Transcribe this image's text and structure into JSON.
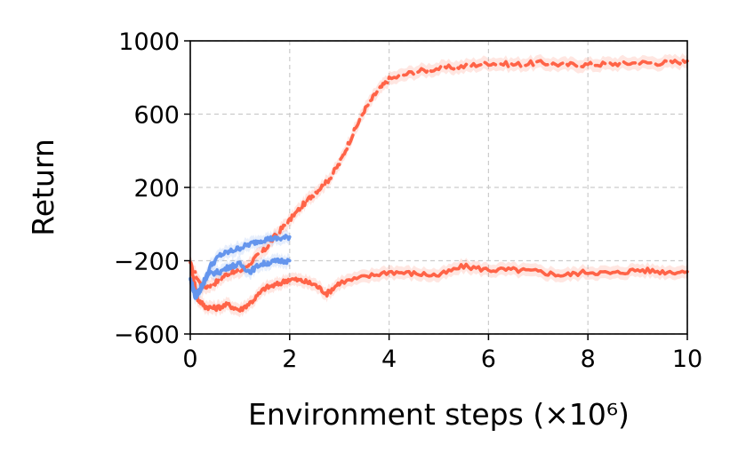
{
  "chart_data": {
    "type": "line",
    "title": "",
    "xlabel": "Environment steps (×10⁶)",
    "ylabel": "Return",
    "xlim": [
      0,
      10
    ],
    "ylim": [
      -600,
      1000
    ],
    "xticks": [
      0,
      2,
      4,
      6,
      8,
      10
    ],
    "xtick_labels": [
      "0",
      "2",
      "4",
      "6",
      "8",
      "10"
    ],
    "yticks": [
      -600,
      -200,
      200,
      600,
      1000
    ],
    "ytick_labels": [
      "−600",
      "−200",
      "200",
      "600",
      "1000"
    ],
    "grid": true,
    "legend": "none",
    "series": [
      {
        "color": "#ff6347",
        "style": "dashed",
        "shaded_band": true,
        "x": [
          0,
          0.25,
          0.5,
          0.75,
          1.0,
          1.25,
          1.5,
          1.75,
          2.0,
          2.25,
          2.5,
          2.75,
          3.0,
          3.25,
          3.5,
          3.75,
          4.0,
          4.5,
          5.0,
          5.5,
          6.0,
          6.5,
          7.0,
          7.5,
          8.0,
          8.5,
          9.0,
          9.5,
          10.0
        ],
        "y": [
          -220,
          -350,
          -320,
          -270,
          -260,
          -200,
          -140,
          -50,
          20,
          100,
          170,
          230,
          330,
          480,
          620,
          720,
          790,
          830,
          850,
          860,
          880,
          870,
          880,
          870,
          870,
          875,
          880,
          880,
          890
        ]
      },
      {
        "color": "#ff6347",
        "style": "solid",
        "shaded_band": true,
        "x": [
          0,
          0.15,
          0.3,
          0.5,
          0.75,
          1.0,
          1.25,
          1.5,
          1.75,
          2.0,
          2.25,
          2.5,
          2.75,
          3.0,
          3.5,
          4.0,
          4.5,
          5.0,
          5.5,
          6.0,
          6.5,
          7.0,
          7.5,
          8.0,
          8.5,
          9.0,
          9.5,
          10.0
        ],
        "y": [
          -200,
          -410,
          -450,
          -460,
          -440,
          -470,
          -420,
          -350,
          -330,
          -300,
          -310,
          -330,
          -380,
          -320,
          -290,
          -260,
          -270,
          -280,
          -230,
          -250,
          -250,
          -260,
          -280,
          -260,
          -270,
          -250,
          -260,
          -260
        ]
      },
      {
        "color": "#6495ed",
        "style": "solid",
        "shaded_band": true,
        "x": [
          0,
          0.1,
          0.2,
          0.4,
          0.6,
          0.8,
          1.0,
          1.2,
          1.4,
          1.6,
          1.8,
          2.0
        ],
        "y": [
          -300,
          -400,
          -360,
          -230,
          -170,
          -150,
          -130,
          -110,
          -90,
          -80,
          -80,
          -70
        ]
      },
      {
        "color": "#6495ed",
        "style": "solid",
        "shaded_band": true,
        "x": [
          0,
          0.1,
          0.2,
          0.4,
          0.6,
          0.8,
          1.0,
          1.2,
          1.4,
          1.6,
          1.8,
          2.0
        ],
        "y": [
          -300,
          -380,
          -350,
          -270,
          -260,
          -230,
          -220,
          -260,
          -220,
          -210,
          -200,
          -200
        ]
      }
    ]
  }
}
